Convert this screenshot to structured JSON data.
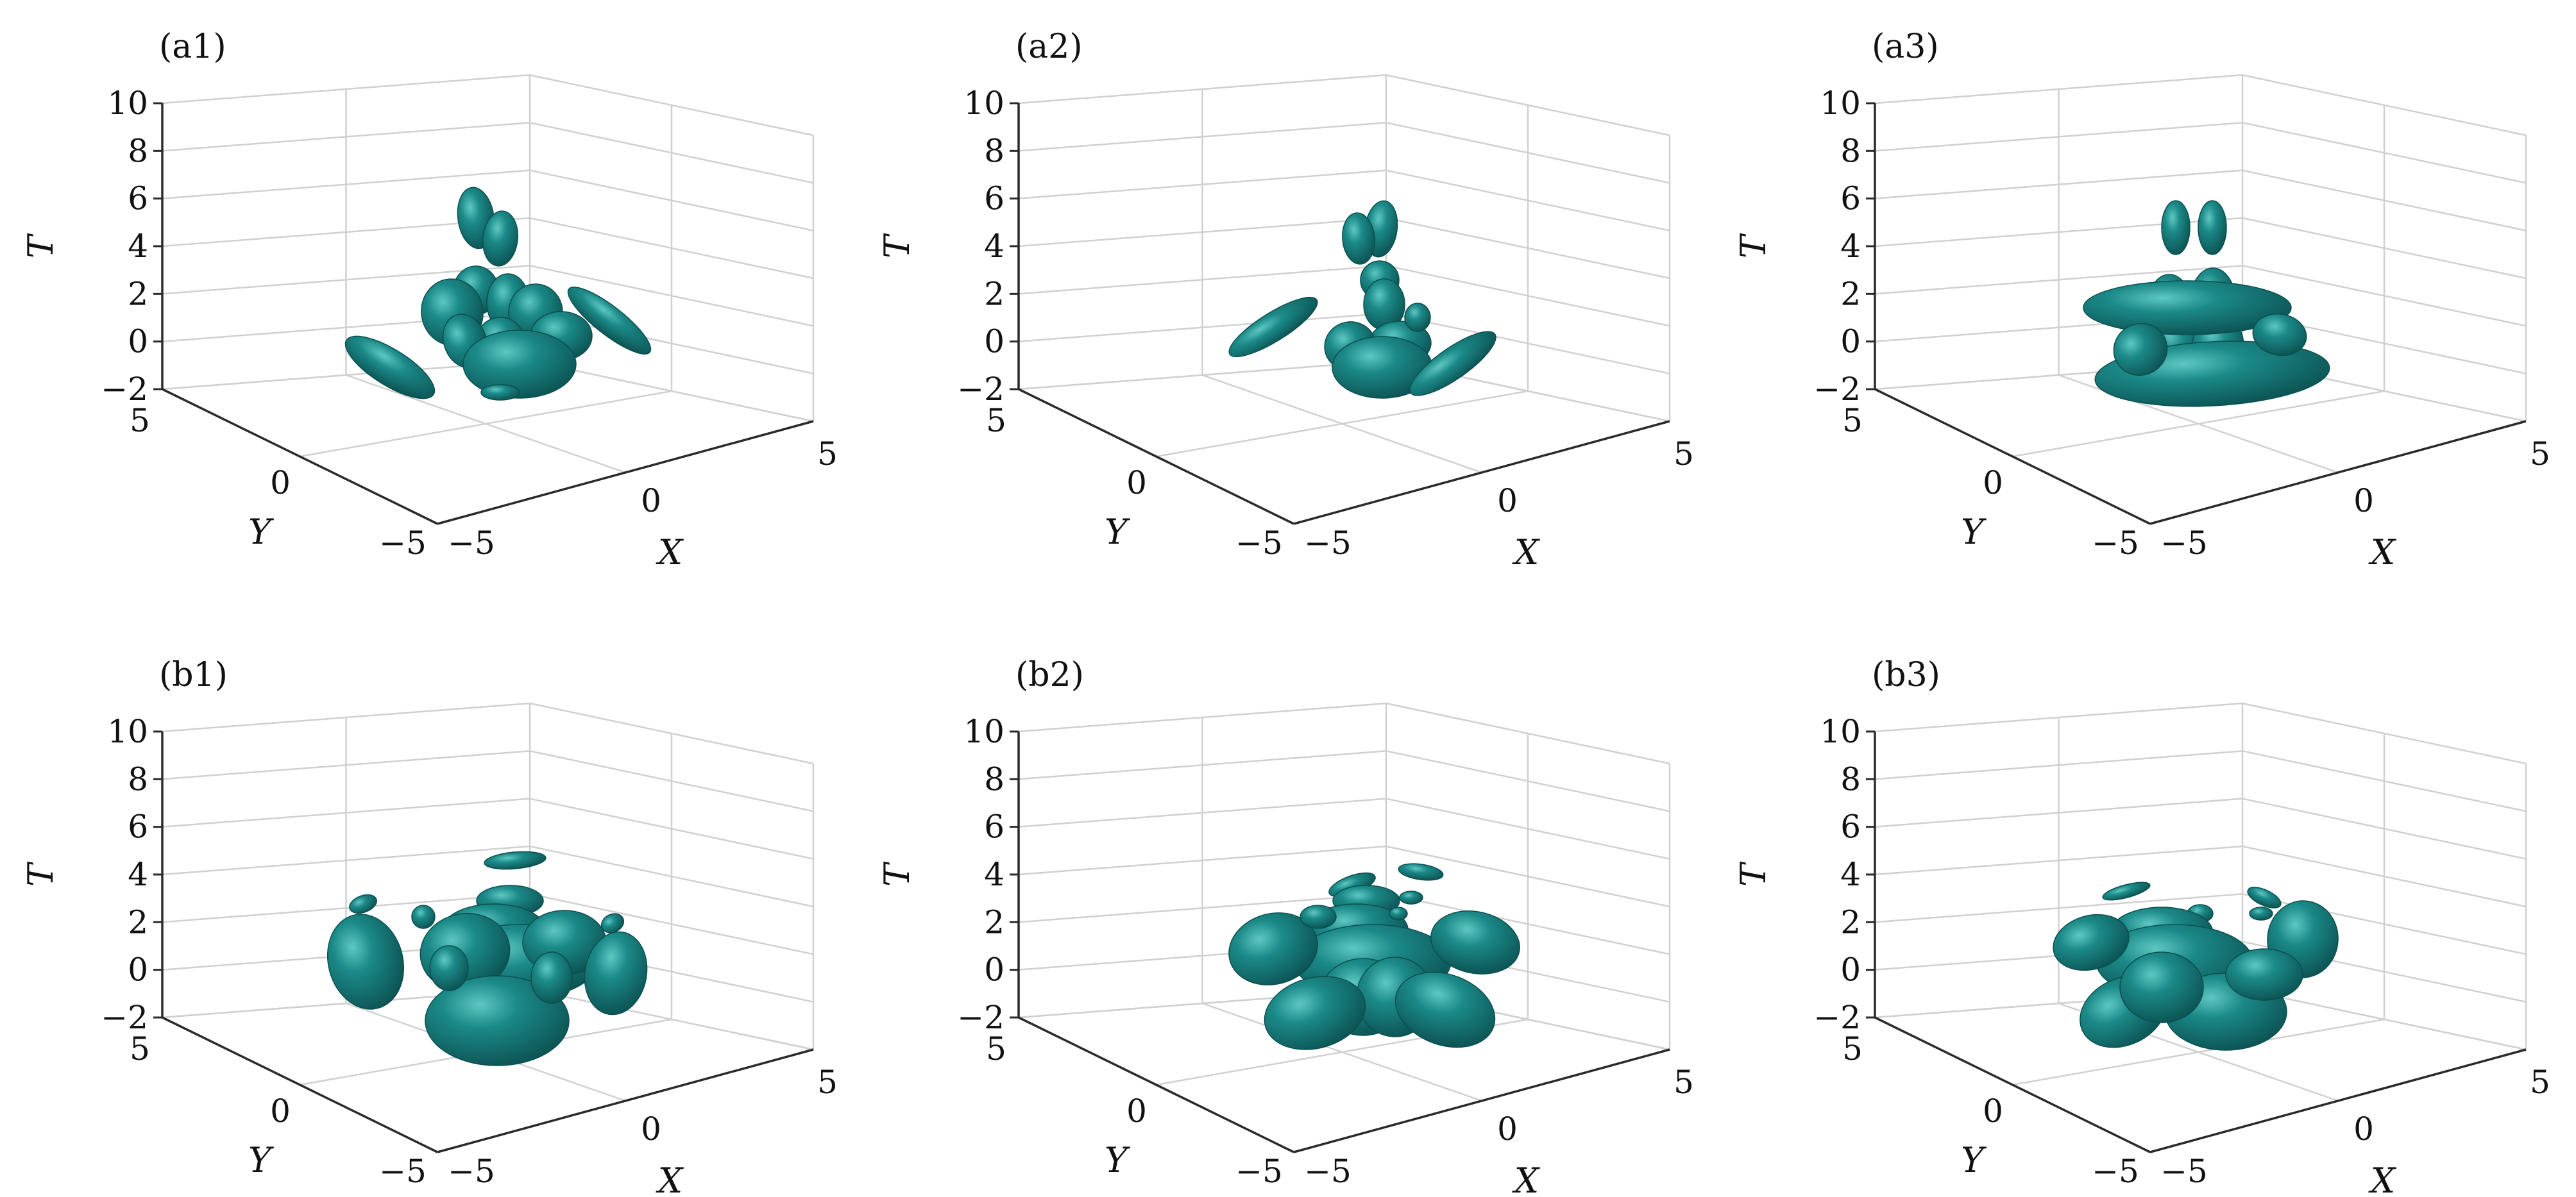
{
  "figure": {
    "surface_color": "#1b8a88",
    "surface_dark": "#0b4f4f",
    "grid_color": "#d0d0d0",
    "axis_color": "#2a2a2a"
  },
  "chart_data": [
    {
      "type": "isosurface-3d",
      "panel_label": "(a1)",
      "xlabel": "X",
      "ylabel": "Y",
      "zlabel": "T",
      "xlim": [
        -5,
        5
      ],
      "ylim": [
        -5,
        5
      ],
      "zlim": [
        -2,
        10
      ],
      "x_ticks": [
        "−5",
        "0",
        "5"
      ],
      "y_ticks": [
        "5",
        "0",
        "−5"
      ],
      "z_ticks": [
        "10",
        "8",
        "6",
        "4",
        "2",
        "0",
        "−2"
      ],
      "grid": true
    },
    {
      "type": "isosurface-3d",
      "panel_label": "(a2)",
      "xlabel": "X",
      "ylabel": "Y",
      "zlabel": "T",
      "xlim": [
        -5,
        5
      ],
      "ylim": [
        -5,
        5
      ],
      "zlim": [
        -2,
        10
      ],
      "x_ticks": [
        "−5",
        "0",
        "5"
      ],
      "y_ticks": [
        "5",
        "0",
        "−5"
      ],
      "z_ticks": [
        "10",
        "8",
        "6",
        "4",
        "2",
        "0",
        "−2"
      ],
      "grid": true
    },
    {
      "type": "isosurface-3d",
      "panel_label": "(a3)",
      "xlabel": "X",
      "ylabel": "Y",
      "zlabel": "T",
      "xlim": [
        -5,
        5
      ],
      "ylim": [
        -5,
        5
      ],
      "zlim": [
        -2,
        10
      ],
      "x_ticks": [
        "−5",
        "0",
        "5"
      ],
      "y_ticks": [
        "5",
        "0",
        "−5"
      ],
      "z_ticks": [
        "10",
        "8",
        "6",
        "4",
        "2",
        "0",
        "−2"
      ],
      "grid": true
    },
    {
      "type": "isosurface-3d",
      "panel_label": "(b1)",
      "xlabel": "X",
      "ylabel": "Y",
      "zlabel": "T",
      "xlim": [
        -5,
        5
      ],
      "ylim": [
        -5,
        5
      ],
      "zlim": [
        -2,
        10
      ],
      "x_ticks": [
        "−5",
        "0",
        "5"
      ],
      "y_ticks": [
        "5",
        "0",
        "−5"
      ],
      "z_ticks": [
        "10",
        "8",
        "6",
        "4",
        "2",
        "0",
        "−2"
      ],
      "grid": true
    },
    {
      "type": "isosurface-3d",
      "panel_label": "(b2)",
      "xlabel": "X",
      "ylabel": "Y",
      "zlabel": "T",
      "xlim": [
        -5,
        5
      ],
      "ylim": [
        -5,
        5
      ],
      "zlim": [
        -2,
        10
      ],
      "x_ticks": [
        "−5",
        "0",
        "5"
      ],
      "y_ticks": [
        "5",
        "0",
        "−5"
      ],
      "z_ticks": [
        "10",
        "8",
        "6",
        "4",
        "2",
        "0",
        "−2"
      ],
      "grid": true
    },
    {
      "type": "isosurface-3d",
      "panel_label": "(b3)",
      "xlabel": "X",
      "ylabel": "Y",
      "zlabel": "T",
      "xlim": [
        -5,
        5
      ],
      "ylim": [
        -5,
        5
      ],
      "zlim": [
        -2,
        10
      ],
      "x_ticks": [
        "−5",
        "0",
        "5"
      ],
      "y_ticks": [
        "5",
        "0",
        "−5"
      ],
      "z_ticks": [
        "10",
        "8",
        "6",
        "4",
        "2",
        "0",
        "−2"
      ],
      "grid": true
    }
  ]
}
